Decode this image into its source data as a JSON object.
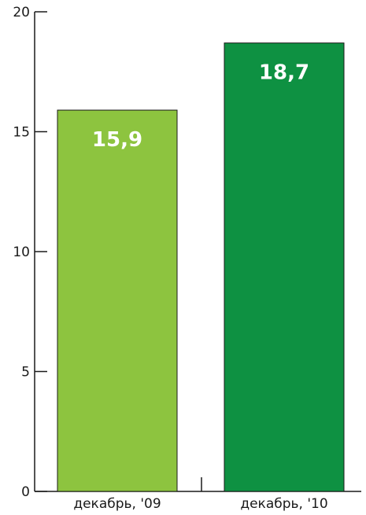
{
  "chart_data": {
    "type": "bar",
    "categories": [
      "декабрь, '09",
      "декабрь, '10"
    ],
    "values": [
      15.9,
      18.7
    ],
    "value_labels": [
      "15,9",
      "18,7"
    ],
    "colors": [
      "#8dc43f",
      "#0e9142"
    ],
    "ylim": [
      0,
      20
    ],
    "yticks": [
      0,
      5,
      10,
      15,
      20
    ],
    "ytick_labels": [
      "0",
      "5",
      "10",
      "15",
      "20"
    ],
    "title": "",
    "xlabel": "",
    "ylabel": "",
    "grid": false,
    "legend": "none"
  }
}
